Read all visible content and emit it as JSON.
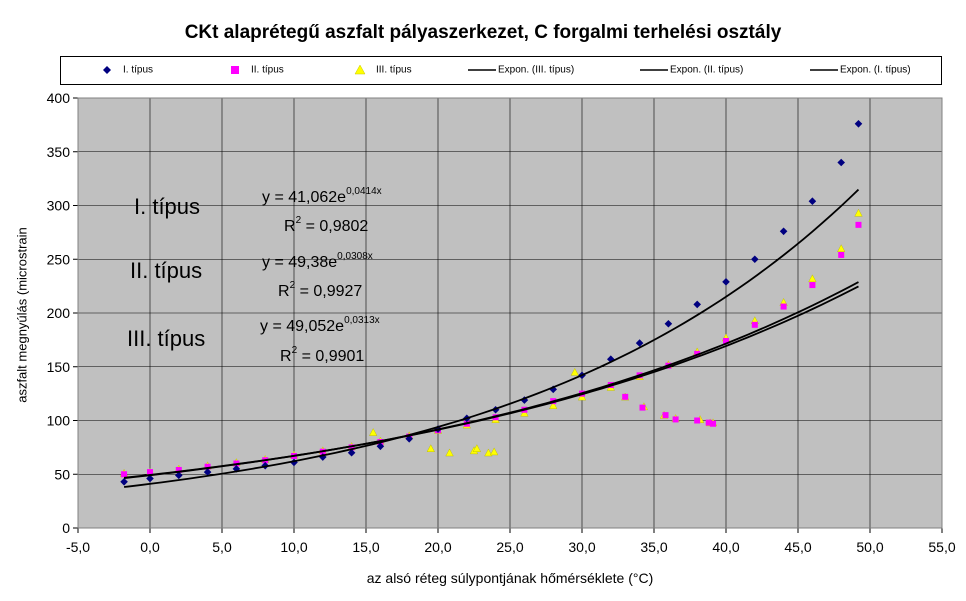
{
  "chart_data": {
    "type": "scatter",
    "title": "CKt alaprétegű aszfalt pályaszerkezet, C forgalmi terhelési osztály",
    "xlabel": "az alsó réteg súlypontjának hőmérséklete (°C)",
    "ylabel": "aszfalt megnyúlás (microstrain",
    "xlim": [
      -5,
      55
    ],
    "ylim": [
      0,
      400
    ],
    "x_ticks": [
      "-5,0",
      "0,0",
      "5,0",
      "10,0",
      "15,0",
      "20,0",
      "25,0",
      "30,0",
      "35,0",
      "40,0",
      "45,0",
      "50,0",
      "55,0"
    ],
    "y_ticks": [
      "0",
      "50",
      "100",
      "150",
      "200",
      "250",
      "300",
      "350",
      "400"
    ],
    "grid": true,
    "background": "#c0c0c0",
    "legend_position": "top",
    "legend": [
      {
        "label": "I. típus",
        "marker": "diamond",
        "color": "#000080"
      },
      {
        "label": "II. típus",
        "marker": "square",
        "color": "#ff00ff"
      },
      {
        "label": "III. típus",
        "marker": "triangle",
        "color": "#ffff00"
      },
      {
        "label": "Expon. (III. típus)",
        "marker": "line",
        "color": "#000000"
      },
      {
        "label": "Expon. (II. típus)",
        "marker": "line",
        "color": "#000000"
      },
      {
        "label": "Expon. (I. típus)",
        "marker": "line",
        "color": "#000000"
      }
    ],
    "series": [
      {
        "name": "I. típus",
        "marker": "diamond",
        "color": "#000080",
        "x": [
          -1.8,
          0,
          2,
          4,
          6,
          8,
          10,
          12,
          14,
          16,
          18,
          20,
          22,
          24,
          26,
          28,
          30,
          32,
          34,
          36,
          38,
          40,
          42,
          44,
          46,
          48,
          49.2
        ],
        "y": [
          43,
          46,
          49,
          52,
          55,
          58,
          61,
          66,
          70,
          76,
          83,
          92,
          102,
          110,
          119,
          129,
          142,
          157,
          172,
          190,
          208,
          229,
          250,
          276,
          304,
          340,
          376
        ],
        "trendline": {
          "equation": "y = 41,062e^0,0414x",
          "a": 41.062,
          "b": 0.0414,
          "r2": "0,9802",
          "x_range": [
            -1.8,
            49.2
          ]
        }
      },
      {
        "name": "II. típus",
        "marker": "square",
        "color": "#ff00ff",
        "x": [
          -1.8,
          0,
          2,
          4,
          6,
          8,
          10,
          12,
          14,
          16,
          18,
          20,
          22,
          24,
          26,
          28,
          30,
          32,
          34,
          36,
          38,
          40,
          42,
          44,
          46,
          48,
          49.2,
          33,
          34.2,
          35.8,
          36.5,
          38,
          38.8,
          39.1
        ],
        "y": [
          50,
          52,
          54,
          57,
          60,
          63,
          67,
          71,
          75,
          80,
          85,
          91,
          97,
          103,
          110,
          118,
          125,
          133,
          142,
          151,
          162,
          174,
          189,
          206,
          226,
          254,
          282,
          122,
          112,
          105,
          101,
          100,
          98,
          97
        ],
        "trendline": {
          "equation": "y = 49,38e^0,0308x",
          "a": 49.38,
          "b": 0.0308,
          "r2": "0,9927",
          "x_range": [
            -1.8,
            49.2
          ]
        }
      },
      {
        "name": "III. típus",
        "marker": "triangle",
        "color": "#ffff00",
        "x": [
          -1.8,
          0,
          2,
          4,
          6,
          8,
          10,
          12,
          14,
          16,
          18,
          20,
          22,
          24,
          26,
          28,
          30,
          32,
          34,
          36,
          38,
          40,
          42,
          44,
          46,
          48,
          49.2,
          15.5,
          19.5,
          20.8,
          22.5,
          22.7,
          23.5,
          23.9,
          29.5,
          33,
          34.3,
          35.7,
          36.5,
          38.2,
          38.9,
          39.1
        ],
        "y": [
          51,
          52,
          55,
          58,
          61,
          64,
          68,
          72,
          76,
          81,
          86,
          91,
          96,
          101,
          107,
          114,
          122,
          131,
          141,
          152,
          164,
          177,
          193,
          210,
          232,
          260,
          293,
          89,
          74,
          70,
          72,
          74,
          70,
          71,
          145,
          122,
          113,
          105,
          102,
          101,
          98,
          98
        ],
        "trendline": {
          "equation": "y = 49,052e^0,0313x",
          "a": 49.052,
          "b": 0.0313,
          "r2": "0,9901",
          "x_range": [
            -1.8,
            49.2
          ]
        }
      }
    ],
    "annotations": [
      {
        "label": "I. típus",
        "equation_base": "y = 41,062e",
        "equation_exp": "0,0414x",
        "r2_base": "R",
        "r2_sup": "2",
        "r2_val": " = 0,9802"
      },
      {
        "label": "II. típus",
        "equation_base": "y = 49,38e",
        "equation_exp": "0,0308x",
        "r2_base": "R",
        "r2_sup": "2",
        "r2_val": " = 0,9927"
      },
      {
        "label": "III. típus",
        "equation_base": "y = 49,052e",
        "equation_exp": "0,0313x",
        "r2_base": "R",
        "r2_sup": "2",
        "r2_val": " = 0,9901"
      }
    ]
  }
}
